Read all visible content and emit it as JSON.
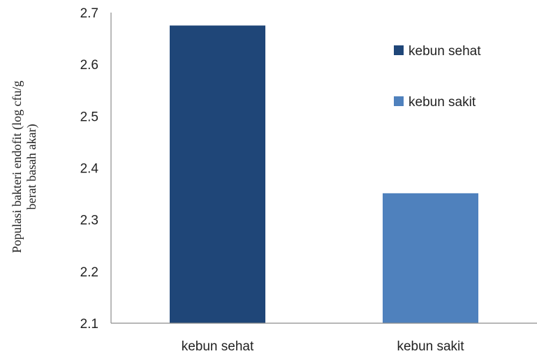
{
  "chart_data": {
    "type": "bar",
    "categories": [
      "kebun sehat",
      "kebun sakit"
    ],
    "values": [
      2.675,
      2.351
    ],
    "ylabel_lines": [
      "Populasi bakteri endofit (log cfu/g",
      "berat basah akar)"
    ],
    "ylim": [
      2.1,
      2.7
    ],
    "yticks": [
      "2.1",
      "2.2",
      "2.3",
      "2.4",
      "2.5",
      "2.6",
      "2.7"
    ],
    "grid": false,
    "legend": {
      "placement": "right",
      "entries": [
        "kebun sehat",
        "kebun sakit"
      ]
    },
    "colors": [
      "#1f4678",
      "#4f81bd"
    ]
  }
}
